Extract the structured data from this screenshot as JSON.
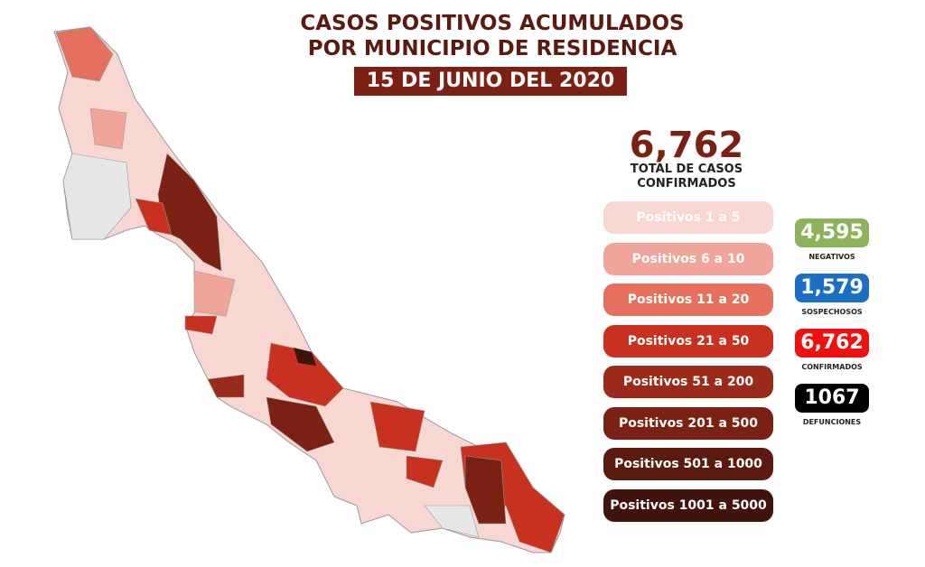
{
  "title": {
    "line1": "CASOS POSITIVOS ACUMULADOS",
    "line2": "POR MUNICIPIO DE RESIDENCIA",
    "date": "15 DE JUNIO DEL 2020"
  },
  "total": {
    "value": "6,762",
    "label1": "TOTAL DE CASOS",
    "label2": "CONFIRMADOS"
  },
  "legend": [
    {
      "label": "Positivos 1 a 5",
      "color": "#f8d6d2"
    },
    {
      "label": "Positivos 6 a 10",
      "color": "#f0a49a"
    },
    {
      "label": "Positivos 11 a 20",
      "color": "#e5705e"
    },
    {
      "label": "Positivos 21 a 50",
      "color": "#c8311f"
    },
    {
      "label": "Positivos 51 a 200",
      "color": "#9a2a1a"
    },
    {
      "label": "Positivos 201 a 500",
      "color": "#7a2114"
    },
    {
      "label": "Positivos 501 a 1000",
      "color": "#5a1a10"
    },
    {
      "label": "Positivos 1001 a 5000",
      "color": "#40140c"
    }
  ],
  "stats": [
    {
      "value": "4,595",
      "label": "NEGATIVOS",
      "color": "#8db35a"
    },
    {
      "value": "1,579",
      "label": "SOSPECHOSOS",
      "color": "#1a6fc4"
    },
    {
      "value": "6,762",
      "label": "CONFIRMADOS",
      "color": "#ef1010"
    },
    {
      "value": "1067",
      "label": "DEFUNCIONES",
      "color": "#000000"
    }
  ]
}
